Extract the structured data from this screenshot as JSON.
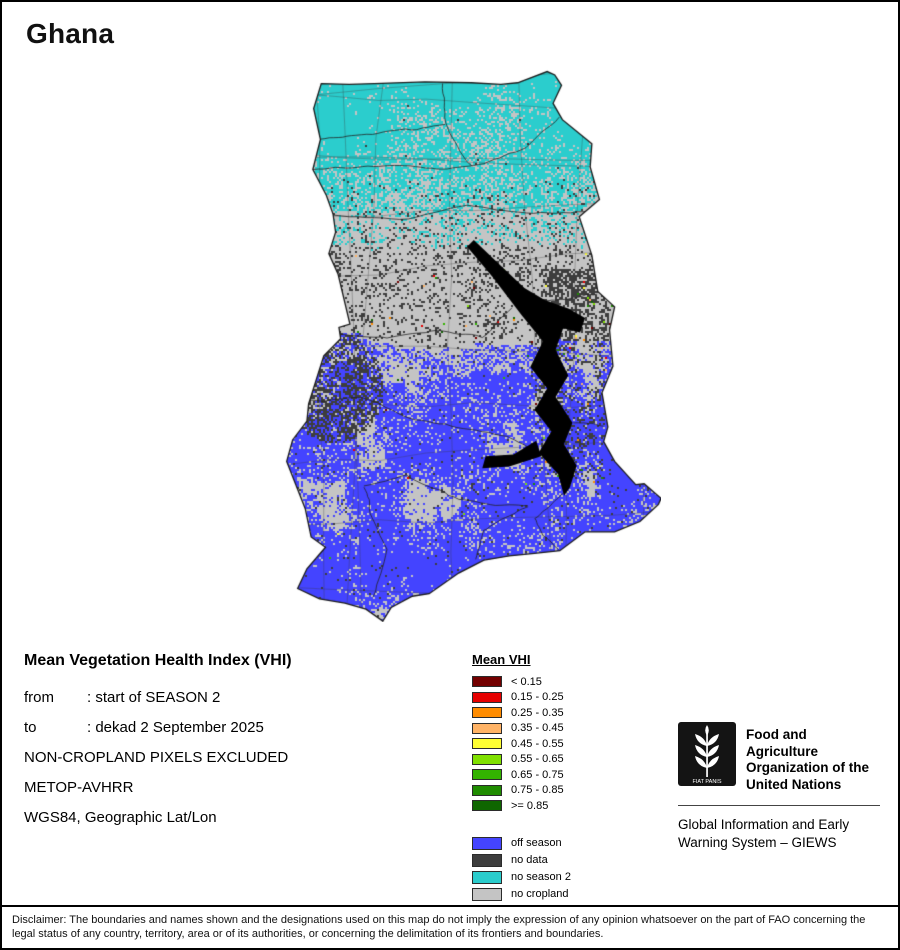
{
  "title": "Ghana",
  "map": {
    "country": "Ghana",
    "base_color": "#C4C4C4",
    "border_color": "#1A1A1A",
    "lake_color": "#000000"
  },
  "info": {
    "heading": "Mean Vegetation Health Index (VHI)",
    "rows": [
      {
        "label": "from",
        "value": ": start of SEASON 2"
      },
      {
        "label": "to",
        "value": ": dekad 2 September 2025"
      },
      {
        "label": "",
        "value": "NON-CROPLAND PIXELS EXCLUDED"
      },
      {
        "label": "",
        "value": "METOP-AVHRR"
      },
      {
        "label": "",
        "value": "WGS84, Geographic Lat/Lon"
      }
    ]
  },
  "legend": {
    "title": "Mean VHI",
    "classes": [
      {
        "label": "< 0.15",
        "color": "#730000"
      },
      {
        "label": "0.15 - 0.25",
        "color": "#E60000"
      },
      {
        "label": "0.25 - 0.35",
        "color": "#FF8C00"
      },
      {
        "label": "0.35 - 0.45",
        "color": "#FFB366"
      },
      {
        "label": "0.45 - 0.55",
        "color": "#FFFF33"
      },
      {
        "label": "0.55 - 0.65",
        "color": "#80E000"
      },
      {
        "label": "0.65 - 0.75",
        "color": "#33B300"
      },
      {
        "label": "0.75 - 0.85",
        "color": "#1F8C00"
      },
      {
        "label": ">= 0.85",
        "color": "#0F6600"
      }
    ],
    "categories": [
      {
        "key": "off_season",
        "label": "off season",
        "color": "#4444FF"
      },
      {
        "key": "no_data",
        "label": "no data",
        "color": "#3D3D3D"
      },
      {
        "key": "no_season2",
        "label": "no season 2",
        "color": "#2BCDCD"
      },
      {
        "key": "no_cropland",
        "label": "no cropland",
        "color": "#C4C4C4"
      }
    ]
  },
  "footer": {
    "org_name_lines": [
      "Food and Agriculture",
      "Organization of the",
      "United Nations"
    ],
    "giews_lines": [
      "Global Information and Early",
      "Warning System – GIEWS"
    ],
    "disclaimer": "Disclaimer: The boundaries and names shown and the designations used on this map do not imply the expression of any opinion whatsoever on the part of FAO concerning the legal status of any country, territory, area or of its authorities, or concerning the delimitation of its frontiers and boundaries."
  }
}
